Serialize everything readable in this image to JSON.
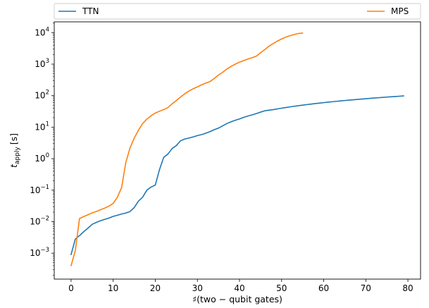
{
  "chart_data": {
    "type": "line",
    "xlabel": "♯(two − qubit gates)",
    "ylabel_main": "t",
    "ylabel_sub": "apply",
    "ylabel_unit": "[s]",
    "xlim": [
      -4,
      83
    ],
    "ylim": [
      0.00015,
      22000
    ],
    "yscale": "log",
    "xticks": [
      0,
      10,
      20,
      30,
      40,
      50,
      60,
      70,
      80
    ],
    "yticks": [
      {
        "value": 0.001,
        "base": "10",
        "exp": "−3"
      },
      {
        "value": 0.01,
        "base": "10",
        "exp": "−2"
      },
      {
        "value": 0.1,
        "base": "10",
        "exp": "−1"
      },
      {
        "value": 1,
        "base": "10",
        "exp": "0"
      },
      {
        "value": 10,
        "base": "10",
        "exp": "1"
      },
      {
        "value": 100,
        "base": "10",
        "exp": "2"
      },
      {
        "value": 1000,
        "base": "10",
        "exp": "3"
      },
      {
        "value": 10000,
        "base": "10",
        "exp": "4"
      }
    ],
    "legend_position": "top, above plot, two columns",
    "series": [
      {
        "name": "TTN",
        "color": "#1f77b4",
        "x": [
          0,
          1,
          2,
          3,
          4,
          5,
          6,
          7,
          8,
          9,
          10,
          11,
          12,
          13,
          14,
          15,
          16,
          17,
          18,
          19,
          20,
          21,
          22,
          23,
          24,
          25,
          26,
          27,
          28,
          29,
          30,
          31,
          32,
          33,
          34,
          35,
          36,
          37,
          38,
          39,
          40,
          41,
          42,
          43,
          44,
          45,
          46,
          47,
          48,
          49,
          50,
          51,
          52,
          53,
          54,
          55,
          56,
          57,
          58,
          59,
          60,
          61,
          62,
          63,
          64,
          65,
          66,
          67,
          68,
          69,
          70,
          71,
          72,
          73,
          74,
          75,
          76,
          77,
          78,
          79
        ],
        "y": [
          0.0009,
          0.0028,
          0.0036,
          0.0048,
          0.0062,
          0.0082,
          0.0095,
          0.0107,
          0.0118,
          0.013,
          0.0147,
          0.016,
          0.0175,
          0.0188,
          0.021,
          0.028,
          0.045,
          0.06,
          0.1,
          0.125,
          0.145,
          0.45,
          1.1,
          1.4,
          2.1,
          2.6,
          3.7,
          4.2,
          4.5,
          4.9,
          5.4,
          5.8,
          6.4,
          7.2,
          8.3,
          9.3,
          11,
          13,
          14.8,
          16.5,
          18.2,
          20.5,
          22.5,
          24.5,
          27,
          30,
          33,
          34.5,
          36,
          38,
          40,
          42,
          44,
          46,
          48,
          50,
          52,
          54,
          56,
          58,
          60,
          62,
          64,
          66,
          68,
          70,
          72,
          74,
          76,
          78,
          80,
          82,
          84,
          86,
          88,
          90,
          92,
          94,
          96,
          98
        ]
      },
      {
        "name": "MPS",
        "color": "#ff7f0e",
        "x": [
          0,
          1,
          2,
          3,
          4,
          5,
          6,
          7,
          8,
          9,
          10,
          11,
          12,
          13,
          14,
          15,
          16,
          17,
          18,
          19,
          20,
          21,
          22,
          23,
          24,
          25,
          26,
          27,
          28,
          29,
          30,
          31,
          32,
          33,
          34,
          35,
          36,
          37,
          38,
          39,
          40,
          41,
          42,
          43,
          44,
          45,
          46,
          47,
          48,
          49,
          50,
          51,
          52,
          53,
          54,
          55
        ],
        "y": [
          0.0004,
          0.0012,
          0.0125,
          0.0145,
          0.0165,
          0.019,
          0.021,
          0.024,
          0.027,
          0.031,
          0.038,
          0.06,
          0.12,
          0.75,
          2.2,
          4.5,
          8,
          13,
          18,
          23,
          28,
          32,
          36,
          42,
          55,
          70,
          90,
          115,
          140,
          165,
          190,
          220,
          250,
          280,
          350,
          450,
          550,
          700,
          850,
          1000,
          1150,
          1300,
          1450,
          1600,
          1800,
          2300,
          2900,
          3700,
          4500,
          5400,
          6300,
          7200,
          8000,
          8700,
          9400,
          9700
        ]
      }
    ]
  }
}
